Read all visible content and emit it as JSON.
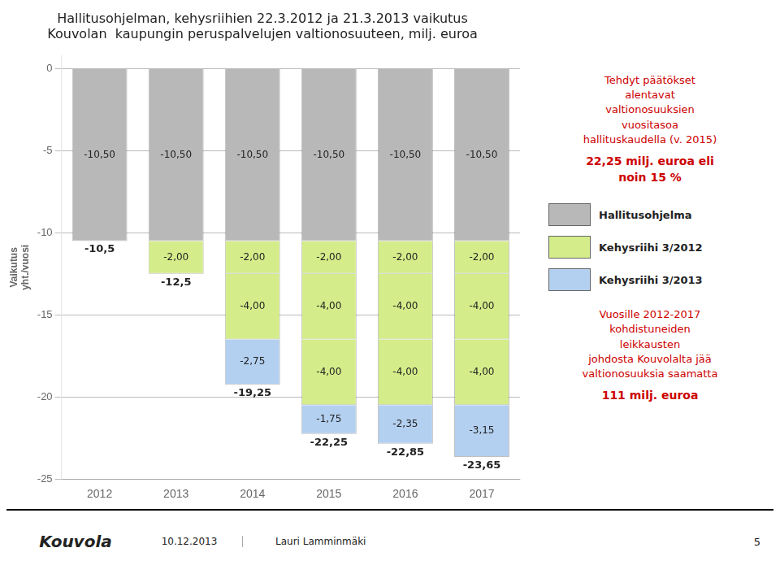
{
  "chart_data": {
    "type": "bar",
    "title": [
      "Hallitusohjelman, kehysriihien 22.3.2012 ja 21.3.2013 vaikutus",
      "Kouvolan  kaupungin peruspalvelujen valtionosuuteen, milj. euroa"
    ],
    "ylabel": [
      "Vaikutus",
      "yht./vuosi"
    ],
    "categories": [
      "2012",
      "2013",
      "2014",
      "2015",
      "2016",
      "2017"
    ],
    "series": [
      {
        "name": "Hallitusohjelma",
        "color": "#b8b8b8",
        "values": [
          -10.5,
          -10.5,
          -10.5,
          -10.5,
          -10.5,
          -10.5
        ],
        "value_labels": [
          "-10,50",
          "-10,50",
          "-10,50",
          "-10,50",
          "-10,50",
          "-10,50"
        ]
      },
      {
        "name": "Kehysriihi 3/2012",
        "color": "#d4ed8a",
        "values": [
          0,
          -2.0,
          -2.0,
          -2.0,
          -2.0,
          -2.0
        ],
        "value_labels": [
          null,
          "-2,00",
          "-2,00",
          "-2,00",
          "-2,00",
          "-2,00"
        ]
      },
      {
        "name": null,
        "color": "#d4ed8a",
        "values": [
          0,
          0,
          -4.0,
          -4.0,
          -4.0,
          -4.0
        ],
        "value_labels": [
          null,
          null,
          "-4,00",
          "-4,00",
          "-4,00",
          "-4,00"
        ]
      },
      {
        "name": null,
        "color": "#d4ed8a",
        "values": [
          0,
          0,
          0,
          -4.0,
          -4.0,
          -4.0
        ],
        "value_labels": [
          null,
          null,
          null,
          "-4,00",
          "-4,00",
          "-4,00"
        ]
      },
      {
        "name": "Kehysriihi 3/2013",
        "color": "#b3d0f0",
        "values": [
          0,
          0,
          -2.75,
          -1.75,
          -2.35,
          -3.15
        ],
        "value_labels": [
          null,
          null,
          "-2,75",
          "-1,75",
          "-2,35",
          "-3,15"
        ]
      }
    ],
    "totals": [
      -10.5,
      -12.5,
      -19.25,
      -22.25,
      -22.85,
      -23.65
    ],
    "total_labels": [
      "-10,5",
      "-12,5",
      "-19,25",
      "-22,25",
      "-22,85",
      "-23,65"
    ],
    "stacked": true,
    "data_labels": true,
    "grid": true,
    "ylim": [
      -25,
      0.8
    ],
    "yticks": [
      -25,
      -20,
      -15,
      -10,
      -5,
      0
    ],
    "annotations": [
      {
        "text": "Tehdyt päätökset\nalentavat\nvaltionosuuksien\nvuositasoa\nhallituskaudella (v. 2015)",
        "value_text": "22,25 milj. euroa eli\nnoin 15 %",
        "color": "#cc0000"
      },
      {
        "text": "Vuosille 2012-2017\nkohdistuneiden\nleikkausten\njohdosta Kouvolalta jää\nvaltionosuuksia saamatta",
        "value_text": "111 milj. euroa",
        "color": "#cc0000"
      }
    ],
    "footer": [
      "Kouvola",
      "10.12.2013",
      "Lauri Lamminmäki",
      "5"
    ]
  }
}
